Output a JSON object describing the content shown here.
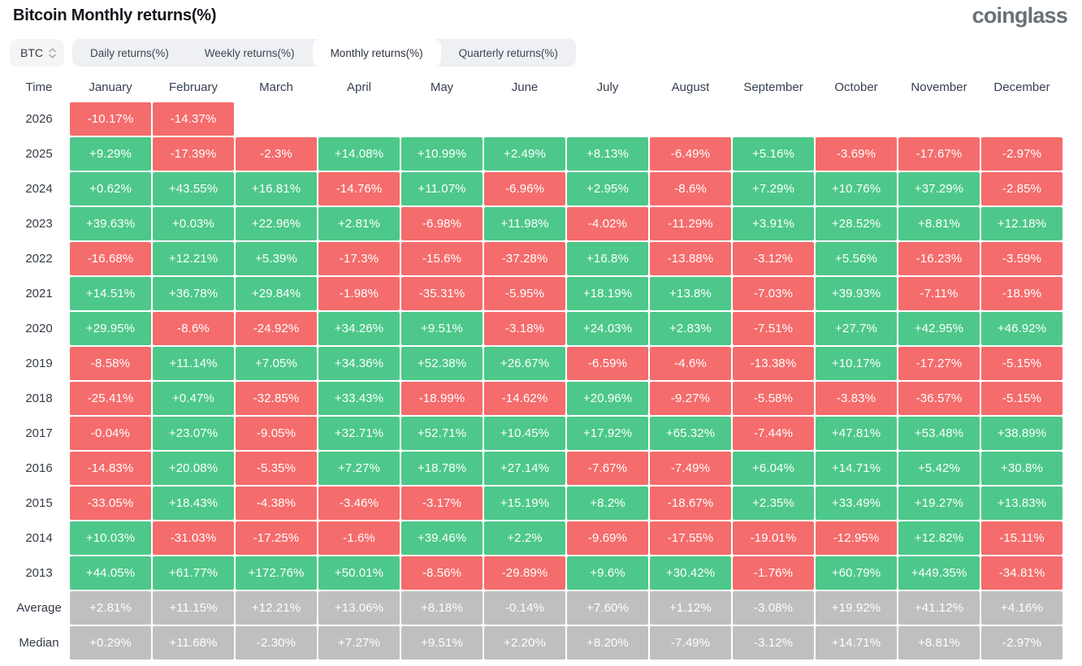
{
  "page": {
    "title": "Bitcoin Monthly returns(%)",
    "logo_text": "coinglass"
  },
  "colors": {
    "positive": "#4dc88a",
    "negative": "#f56c6c",
    "neutral": "#bfbfbf"
  },
  "controls": {
    "symbol_select": {
      "value": "BTC"
    },
    "tabs": [
      {
        "id": "daily",
        "label": "Daily returns(%)",
        "active": false
      },
      {
        "id": "weekly",
        "label": "Weekly returns(%)",
        "active": false
      },
      {
        "id": "monthly",
        "label": "Monthly returns(%)",
        "active": true
      },
      {
        "id": "quarterly",
        "label": "Quarterly returns(%)",
        "active": false
      }
    ]
  },
  "chart_data": {
    "type": "heatmap",
    "title": "Bitcoin Monthly returns(%)",
    "corner_label": "Time",
    "x_labels": [
      "January",
      "February",
      "March",
      "April",
      "May",
      "June",
      "July",
      "August",
      "September",
      "October",
      "November",
      "December"
    ],
    "legend": {
      "positive_color": "#4dc88a",
      "negative_color": "#f56c6c",
      "summary_color": "#bfbfbf"
    },
    "rows": [
      {
        "label": "2026",
        "summary": false,
        "values": [
          "-10.17%",
          "-14.37%",
          null,
          null,
          null,
          null,
          null,
          null,
          null,
          null,
          null,
          null
        ]
      },
      {
        "label": "2025",
        "summary": false,
        "values": [
          "+9.29%",
          "-17.39%",
          "-2.3%",
          "+14.08%",
          "+10.99%",
          "+2.49%",
          "+8.13%",
          "-6.49%",
          "+5.16%",
          "-3.69%",
          "-17.67%",
          "-2.97%"
        ]
      },
      {
        "label": "2024",
        "summary": false,
        "values": [
          "+0.62%",
          "+43.55%",
          "+16.81%",
          "-14.76%",
          "+11.07%",
          "-6.96%",
          "+2.95%",
          "-8.6%",
          "+7.29%",
          "+10.76%",
          "+37.29%",
          "-2.85%"
        ]
      },
      {
        "label": "2023",
        "summary": false,
        "values": [
          "+39.63%",
          "+0.03%",
          "+22.96%",
          "+2.81%",
          "-6.98%",
          "+11.98%",
          "-4.02%",
          "-11.29%",
          "+3.91%",
          "+28.52%",
          "+8.81%",
          "+12.18%"
        ]
      },
      {
        "label": "2022",
        "summary": false,
        "values": [
          "-16.68%",
          "+12.21%",
          "+5.39%",
          "-17.3%",
          "-15.6%",
          "-37.28%",
          "+16.8%",
          "-13.88%",
          "-3.12%",
          "+5.56%",
          "-16.23%",
          "-3.59%"
        ]
      },
      {
        "label": "2021",
        "summary": false,
        "values": [
          "+14.51%",
          "+36.78%",
          "+29.84%",
          "-1.98%",
          "-35.31%",
          "-5.95%",
          "+18.19%",
          "+13.8%",
          "-7.03%",
          "+39.93%",
          "-7.11%",
          "-18.9%"
        ]
      },
      {
        "label": "2020",
        "summary": false,
        "values": [
          "+29.95%",
          "-8.6%",
          "-24.92%",
          "+34.26%",
          "+9.51%",
          "-3.18%",
          "+24.03%",
          "+2.83%",
          "-7.51%",
          "+27.7%",
          "+42.95%",
          "+46.92%"
        ]
      },
      {
        "label": "2019",
        "summary": false,
        "values": [
          "-8.58%",
          "+11.14%",
          "+7.05%",
          "+34.36%",
          "+52.38%",
          "+26.67%",
          "-6.59%",
          "-4.6%",
          "-13.38%",
          "+10.17%",
          "-17.27%",
          "-5.15%"
        ]
      },
      {
        "label": "2018",
        "summary": false,
        "values": [
          "-25.41%",
          "+0.47%",
          "-32.85%",
          "+33.43%",
          "-18.99%",
          "-14.62%",
          "+20.96%",
          "-9.27%",
          "-5.58%",
          "-3.83%",
          "-36.57%",
          "-5.15%"
        ]
      },
      {
        "label": "2017",
        "summary": false,
        "values": [
          "-0.04%",
          "+23.07%",
          "-9.05%",
          "+32.71%",
          "+52.71%",
          "+10.45%",
          "+17.92%",
          "+65.32%",
          "-7.44%",
          "+47.81%",
          "+53.48%",
          "+38.89%"
        ]
      },
      {
        "label": "2016",
        "summary": false,
        "values": [
          "-14.83%",
          "+20.08%",
          "-5.35%",
          "+7.27%",
          "+18.78%",
          "+27.14%",
          "-7.67%",
          "-7.49%",
          "+6.04%",
          "+14.71%",
          "+5.42%",
          "+30.8%"
        ]
      },
      {
        "label": "2015",
        "summary": false,
        "values": [
          "-33.05%",
          "+18.43%",
          "-4.38%",
          "-3.46%",
          "-3.17%",
          "+15.19%",
          "+8.2%",
          "-18.67%",
          "+2.35%",
          "+33.49%",
          "+19.27%",
          "+13.83%"
        ]
      },
      {
        "label": "2014",
        "summary": false,
        "values": [
          "+10.03%",
          "-31.03%",
          "-17.25%",
          "-1.6%",
          "+39.46%",
          "+2.2%",
          "-9.69%",
          "-17.55%",
          "-19.01%",
          "-12.95%",
          "+12.82%",
          "-15.11%"
        ]
      },
      {
        "label": "2013",
        "summary": false,
        "values": [
          "+44.05%",
          "+61.77%",
          "+172.76%",
          "+50.01%",
          "-8.56%",
          "-29.89%",
          "+9.6%",
          "+30.42%",
          "-1.76%",
          "+60.79%",
          "+449.35%",
          "-34.81%"
        ]
      },
      {
        "label": "Average",
        "summary": true,
        "values": [
          "+2.81%",
          "+11.15%",
          "+12.21%",
          "+13.06%",
          "+8.18%",
          "-0.14%",
          "+7.60%",
          "+1.12%",
          "-3.08%",
          "+19.92%",
          "+41.12%",
          "+4.16%"
        ]
      },
      {
        "label": "Median",
        "summary": true,
        "values": [
          "+0.29%",
          "+11.68%",
          "-2.30%",
          "+7.27%",
          "+9.51%",
          "+2.20%",
          "+8.20%",
          "-7.49%",
          "-3.12%",
          "+14.71%",
          "+8.81%",
          "-2.97%"
        ]
      }
    ]
  }
}
